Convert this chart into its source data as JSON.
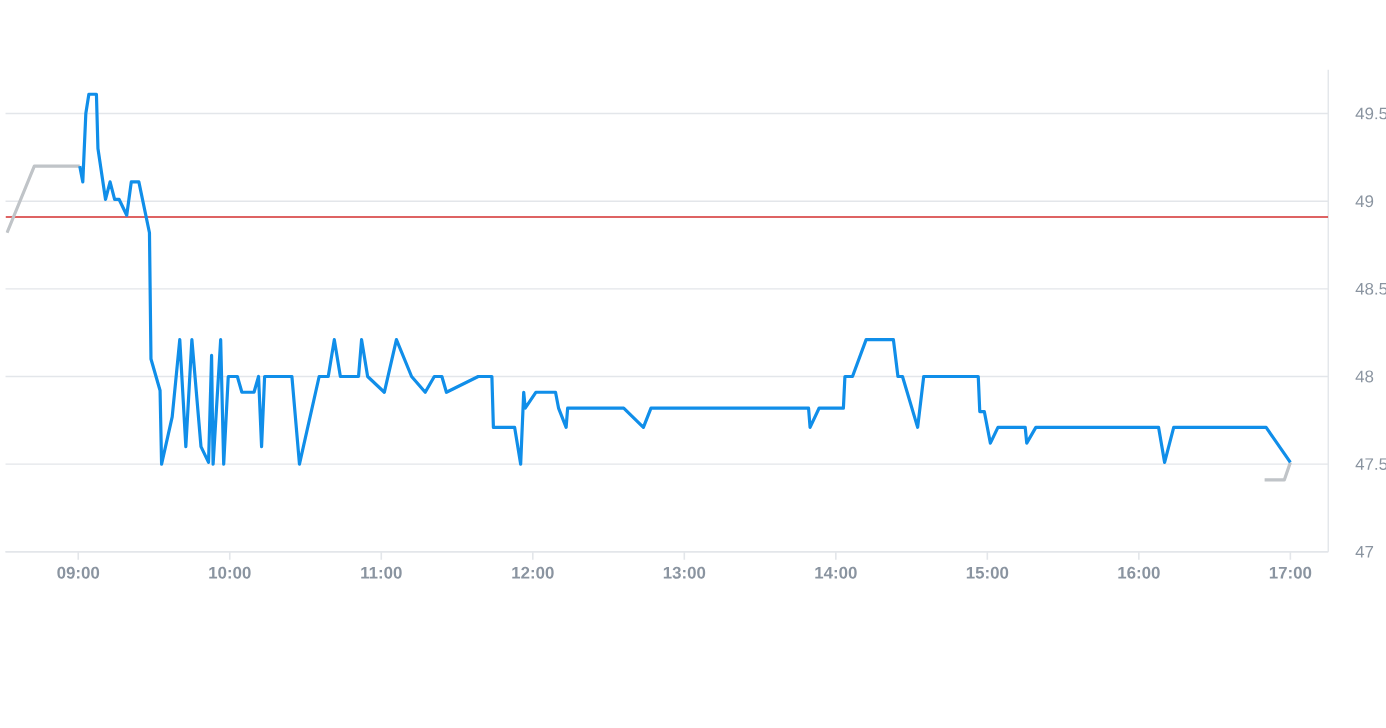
{
  "chart_data": {
    "type": "line",
    "xlim": [
      8.52,
      17.25
    ],
    "ylim": [
      47,
      49.75
    ],
    "xticks": [
      {
        "value": 9,
        "label": "09:00"
      },
      {
        "value": 10,
        "label": "10:00"
      },
      {
        "value": 11,
        "label": "11:00"
      },
      {
        "value": 12,
        "label": "12:00"
      },
      {
        "value": 13,
        "label": "13:00"
      },
      {
        "value": 14,
        "label": "14:00"
      },
      {
        "value": 15,
        "label": "15:00"
      },
      {
        "value": 16,
        "label": "16:00"
      },
      {
        "value": 17,
        "label": "17:00"
      }
    ],
    "yticks": [
      47,
      47.5,
      48,
      48.5,
      49,
      49.5
    ],
    "grid": "y",
    "marker": "none",
    "line_style": "solid",
    "ref_lines": [
      {
        "axis": "y",
        "value": 48.91,
        "color": "#d32f2f"
      }
    ],
    "series": [
      {
        "color": "#c0c4c8",
        "x": [
          8.53,
          8.71,
          9.01,
          12.0,
          16.83,
          16.96,
          17.0
        ],
        "values": [
          48.82,
          49.2,
          49.2,
          null,
          47.41,
          47.41,
          47.51
        ]
      },
      {
        "color": "#108ee9",
        "x": [
          9.01,
          9.03,
          9.05,
          9.07,
          9.12,
          9.13,
          9.18,
          9.21,
          9.24,
          9.27,
          9.32,
          9.35,
          9.4,
          9.47,
          9.48,
          9.54,
          9.55,
          9.62,
          9.67,
          9.71,
          9.75,
          9.81,
          9.86,
          9.88,
          9.89,
          9.94,
          9.96,
          9.99,
          10.05,
          10.08,
          10.16,
          10.19,
          10.21,
          10.23,
          10.41,
          10.46,
          10.59,
          10.65,
          10.69,
          10.73,
          10.85,
          10.87,
          10.91,
          11.02,
          11.1,
          11.2,
          11.29,
          11.35,
          11.4,
          11.43,
          11.64,
          11.73,
          11.74,
          11.88,
          11.92,
          11.94,
          11.95,
          12.02,
          12.15,
          12.17,
          12.22,
          12.23,
          12.6,
          12.73,
          12.78,
          13.82,
          13.83,
          13.89,
          14.05,
          14.06,
          14.11,
          14.2,
          14.38,
          14.41,
          14.44,
          14.54,
          14.58,
          14.94,
          14.95,
          14.98,
          15.02,
          15.07,
          15.25,
          15.26,
          15.32,
          16.13,
          16.17,
          16.23,
          16.84,
          17.0
        ],
        "values": [
          49.2,
          49.11,
          49.5,
          49.61,
          49.61,
          49.3,
          49.01,
          49.11,
          49.01,
          49.01,
          48.92,
          49.11,
          49.11,
          48.82,
          48.1,
          47.92,
          47.5,
          47.77,
          48.21,
          47.6,
          48.21,
          47.6,
          47.51,
          48.12,
          47.5,
          48.21,
          47.5,
          48.0,
          48.0,
          47.91,
          47.91,
          48.0,
          47.6,
          48.0,
          48.0,
          47.5,
          48.0,
          48.0,
          48.21,
          48.0,
          48.0,
          48.21,
          48.0,
          47.91,
          48.21,
          48.0,
          47.91,
          48.0,
          48.0,
          47.91,
          48.0,
          48.0,
          47.71,
          47.71,
          47.5,
          47.91,
          47.82,
          47.91,
          47.91,
          47.82,
          47.71,
          47.82,
          47.82,
          47.71,
          47.82,
          47.82,
          47.71,
          47.82,
          47.82,
          48.0,
          48.0,
          48.21,
          48.21,
          48.0,
          48.0,
          47.71,
          48.0,
          48.0,
          47.8,
          47.8,
          47.62,
          47.71,
          47.71,
          47.62,
          47.71,
          47.71,
          47.51,
          47.71,
          47.71,
          47.51
        ]
      }
    ]
  }
}
